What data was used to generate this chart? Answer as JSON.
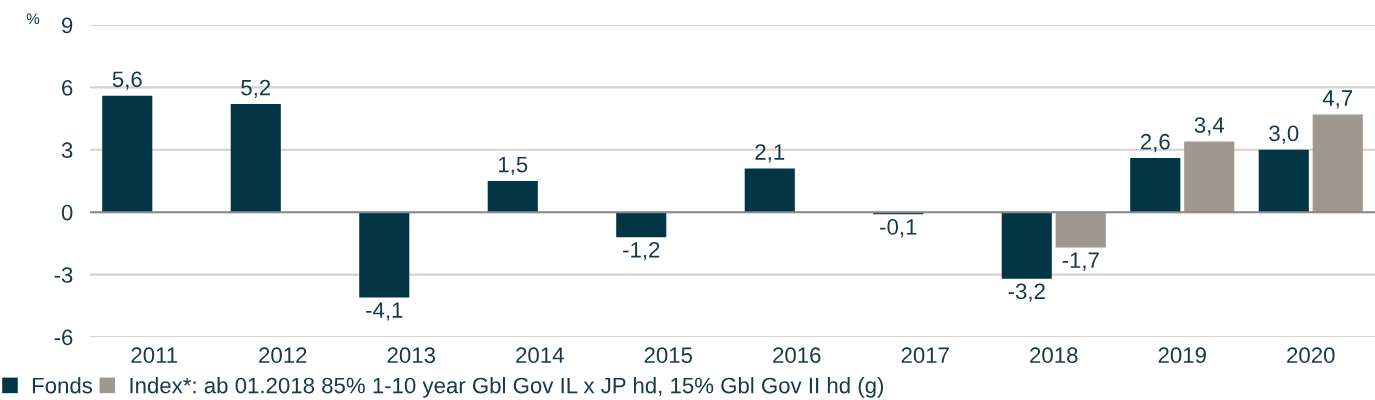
{
  "chart_data": {
    "type": "bar",
    "ylabel": "%",
    "categories": [
      "2011",
      "2012",
      "2013",
      "2014",
      "2015",
      "2016",
      "2017",
      "2018",
      "2019",
      "2020"
    ],
    "series": [
      {
        "name": "Fonds",
        "color": "#023644",
        "values": [
          5.6,
          5.2,
          -4.1,
          1.5,
          -1.2,
          2.1,
          -0.1,
          -3.2,
          2.6,
          3.0
        ],
        "value_labels": [
          "5,6",
          "5,2",
          "-4,1",
          "1,5",
          "-1,2",
          "2,1",
          "-0,1",
          "-3,2",
          "2,6",
          "3,0"
        ]
      },
      {
        "name": "Index*: ab 01.2018 85% 1-10 year Gbl Gov IL x JP hd, 15% Gbl Gov II hd (g)",
        "color": "#a0978e",
        "values": [
          null,
          null,
          null,
          null,
          null,
          null,
          null,
          -1.7,
          3.4,
          4.7
        ],
        "value_labels": [
          null,
          null,
          null,
          null,
          null,
          null,
          null,
          "-1,7",
          "3,4",
          "4,7"
        ]
      }
    ],
    "ylim": [
      -6,
      9
    ],
    "yticks": [
      -6,
      -3,
      0,
      3,
      6,
      9
    ],
    "grid": "y",
    "legend": "bottom left"
  }
}
